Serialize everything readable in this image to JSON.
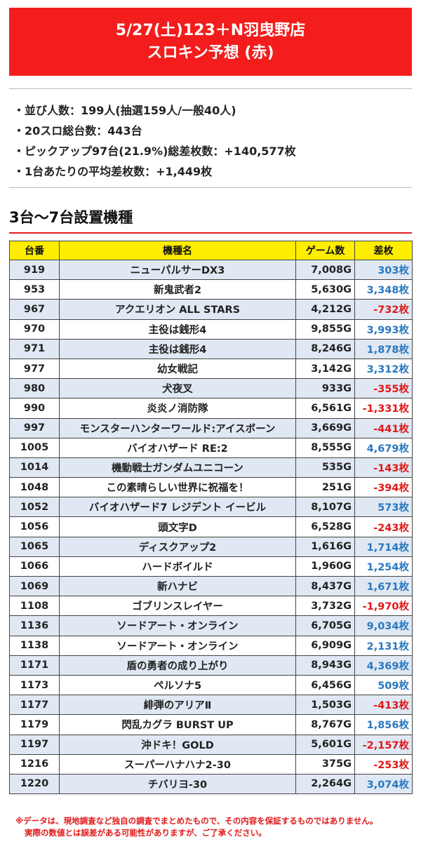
{
  "header": {
    "line1": "5/27(土)123＋N羽曳野店",
    "line2": "スロキン予想 (赤)"
  },
  "summary": [
    "・並び人数：199人(抽選159人/一般40人)",
    "・20スロ総台数：443台",
    "・ピックアップ97台(21.9%)総差枚数：+140,577枚",
    "・1台あたりの平均差枚数：+1,449枚"
  ],
  "section_title": "3台〜7台設置機種",
  "table": {
    "headers": [
      "台番",
      "機種名",
      "ゲーム数",
      "差枚"
    ],
    "rows": [
      {
        "num": "919",
        "name": "ニューパルサーDX3",
        "games": "7,008G",
        "diff": "303枚",
        "sign": "pos"
      },
      {
        "num": "953",
        "name": "新鬼武者2",
        "games": "5,630G",
        "diff": "3,348枚",
        "sign": "pos"
      },
      {
        "num": "967",
        "name": "アクエリオン ALL STARS",
        "games": "4,212G",
        "diff": "-732枚",
        "sign": "neg"
      },
      {
        "num": "970",
        "name": "主役は銭形4",
        "games": "9,855G",
        "diff": "3,993枚",
        "sign": "pos"
      },
      {
        "num": "971",
        "name": "主役は銭形4",
        "games": "8,246G",
        "diff": "1,878枚",
        "sign": "pos"
      },
      {
        "num": "977",
        "name": "幼女戦記",
        "games": "3,142G",
        "diff": "3,312枚",
        "sign": "pos"
      },
      {
        "num": "980",
        "name": "犬夜叉",
        "games": "933G",
        "diff": "-355枚",
        "sign": "neg"
      },
      {
        "num": "990",
        "name": "炎炎ノ消防隊",
        "games": "6,561G",
        "diff": "-1,331枚",
        "sign": "neg"
      },
      {
        "num": "997",
        "name": "モンスターハンターワールド:アイスボーン",
        "games": "3,669G",
        "diff": "-441枚",
        "sign": "neg"
      },
      {
        "num": "1005",
        "name": "バイオハザード RE:2",
        "games": "8,555G",
        "diff": "4,679枚",
        "sign": "pos"
      },
      {
        "num": "1014",
        "name": "機動戦士ガンダムユニコーン",
        "games": "535G",
        "diff": "-143枚",
        "sign": "neg"
      },
      {
        "num": "1048",
        "name": "この素晴らしい世界に祝福を！",
        "games": "251G",
        "diff": "-394枚",
        "sign": "neg"
      },
      {
        "num": "1052",
        "name": "バイオハザード7 レジデント イービル",
        "games": "8,107G",
        "diff": "573枚",
        "sign": "pos"
      },
      {
        "num": "1056",
        "name": "頭文字D",
        "games": "6,528G",
        "diff": "-243枚",
        "sign": "neg"
      },
      {
        "num": "1065",
        "name": "ディスクアップ2",
        "games": "1,616G",
        "diff": "1,714枚",
        "sign": "pos"
      },
      {
        "num": "1066",
        "name": "ハードボイルド",
        "games": "1,960G",
        "diff": "1,254枚",
        "sign": "pos"
      },
      {
        "num": "1069",
        "name": "新ハナビ",
        "games": "8,437G",
        "diff": "1,671枚",
        "sign": "pos"
      },
      {
        "num": "1108",
        "name": "ゴブリンスレイヤー",
        "games": "3,732G",
        "diff": "-1,970枚",
        "sign": "neg"
      },
      {
        "num": "1136",
        "name": "ソードアート・オンライン",
        "games": "6,705G",
        "diff": "9,034枚",
        "sign": "pos"
      },
      {
        "num": "1138",
        "name": "ソードアート・オンライン",
        "games": "6,909G",
        "diff": "2,131枚",
        "sign": "pos"
      },
      {
        "num": "1171",
        "name": "盾の勇者の成り上がり",
        "games": "8,943G",
        "diff": "4,369枚",
        "sign": "pos"
      },
      {
        "num": "1173",
        "name": "ペルソナ5",
        "games": "6,456G",
        "diff": "509枚",
        "sign": "pos"
      },
      {
        "num": "1177",
        "name": "緋弾のアリアⅡ",
        "games": "1,503G",
        "diff": "-413枚",
        "sign": "neg"
      },
      {
        "num": "1179",
        "name": "閃乱カグラ BURST UP",
        "games": "8,767G",
        "diff": "1,856枚",
        "sign": "pos"
      },
      {
        "num": "1197",
        "name": "沖ドキ！GOLD",
        "games": "5,601G",
        "diff": "-2,157枚",
        "sign": "neg"
      },
      {
        "num": "1216",
        "name": "スーパーハナハナ2-30",
        "games": "375G",
        "diff": "-253枚",
        "sign": "neg"
      },
      {
        "num": "1220",
        "name": "チバリヨ-30",
        "games": "2,264G",
        "diff": "3,074枚",
        "sign": "pos"
      }
    ]
  },
  "footer": {
    "line1": "※データは、現地調査など独自の調査でまとめたもので、その内容を保証するものではありません。",
    "line2": "実際の数値とは誤差がある可能性がありますが、ご了承ください。"
  },
  "colors": {
    "header_bg": "#f31d1d",
    "table_header_bg": "#ffee00",
    "row_alt_bg": "#dfe8f3",
    "positive": "#2878c0",
    "negative": "#e01818"
  }
}
